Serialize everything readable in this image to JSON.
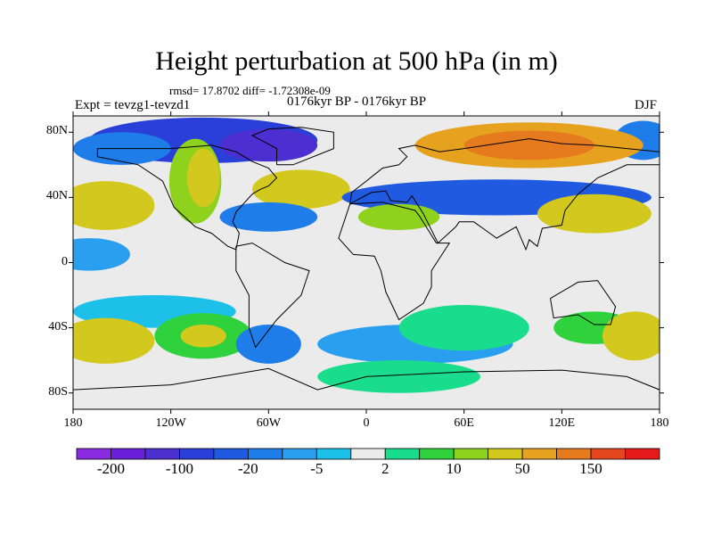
{
  "title": "Height perturbation at 500 hPa (in m)",
  "stats": "rmsd= 17.8702 diff= -1.72308e-09",
  "experiment": "Expt = tevzg1-tevzd1",
  "period": "0176kyr BP - 0176kyr BP",
  "season": "DJF",
  "map": {
    "projection": "cylindrical-equidistant",
    "lon_range": [
      -180,
      180
    ],
    "lat_range": [
      -90,
      90
    ],
    "x_ticks": [
      {
        "lon": -180,
        "label": "180"
      },
      {
        "lon": -120,
        "label": "120W"
      },
      {
        "lon": -60,
        "label": "60W"
      },
      {
        "lon": 0,
        "label": "0"
      },
      {
        "lon": 60,
        "label": "60E"
      },
      {
        "lon": 120,
        "label": "120E"
      },
      {
        "lon": 180,
        "label": "180"
      }
    ],
    "y_ticks": [
      {
        "lat": 80,
        "label": "80N"
      },
      {
        "lat": 40,
        "label": "40N"
      },
      {
        "lat": 0,
        "label": "0"
      },
      {
        "lat": -40,
        "label": "40S"
      },
      {
        "lat": -80,
        "label": "80S"
      }
    ],
    "background_color": "#ebebeb",
    "coastline_color": "#000000"
  },
  "colorbar": {
    "colors": [
      "#8a2be2",
      "#6a1fd8",
      "#4b2fd0",
      "#2a3fd8",
      "#1f5ae0",
      "#1e7de8",
      "#2a9ff0",
      "#1cc0e8",
      "#ebebeb",
      "#19dc8c",
      "#2fd23c",
      "#8fd21e",
      "#d2c81e",
      "#e6a21e",
      "#e67a1e",
      "#e6461e",
      "#e61a1a"
    ],
    "labels": [
      {
        "boundary": 1,
        "label": "-200"
      },
      {
        "boundary": 3,
        "label": "-100"
      },
      {
        "boundary": 5,
        "label": "-20"
      },
      {
        "boundary": 7,
        "label": "-5"
      },
      {
        "boundary": 9,
        "label": "2"
      },
      {
        "boundary": 11,
        "label": "10"
      },
      {
        "boundary": 13,
        "label": "50"
      },
      {
        "boundary": 15,
        "label": "150"
      }
    ]
  },
  "anomaly_fields": [
    {
      "lon": -100,
      "lat": 75,
      "rx": 70,
      "ry": 14,
      "color": "#2a3fd8"
    },
    {
      "lon": -60,
      "lat": 72,
      "rx": 30,
      "ry": 10,
      "color": "#4b2fd0"
    },
    {
      "lon": -150,
      "lat": 70,
      "rx": 30,
      "ry": 10,
      "color": "#1e7de8"
    },
    {
      "lon": 170,
      "lat": 75,
      "rx": 18,
      "ry": 12,
      "color": "#1e7de8"
    },
    {
      "lon": 100,
      "lat": 72,
      "rx": 70,
      "ry": 14,
      "color": "#e6a21e"
    },
    {
      "lon": 100,
      "lat": 72,
      "rx": 40,
      "ry": 9,
      "color": "#e67a1e"
    },
    {
      "lon": -40,
      "lat": 45,
      "rx": 30,
      "ry": 12,
      "color": "#d2c81e"
    },
    {
      "lon": -105,
      "lat": 50,
      "rx": 16,
      "ry": 26,
      "color": "#8fd21e"
    },
    {
      "lon": -100,
      "lat": 52,
      "rx": 10,
      "ry": 18,
      "color": "#d2c81e"
    },
    {
      "lon": 80,
      "lat": 40,
      "rx": 95,
      "ry": 11,
      "color": "#1f5ae0"
    },
    {
      "lon": -60,
      "lat": 28,
      "rx": 30,
      "ry": 9,
      "color": "#1e7de8"
    },
    {
      "lon": -160,
      "lat": 35,
      "rx": 30,
      "ry": 15,
      "color": "#d2c81e"
    },
    {
      "lon": 140,
      "lat": 30,
      "rx": 35,
      "ry": 12,
      "color": "#d2c81e"
    },
    {
      "lon": 20,
      "lat": 28,
      "rx": 25,
      "ry": 8,
      "color": "#8fd21e"
    },
    {
      "lon": -170,
      "lat": 5,
      "rx": 25,
      "ry": 10,
      "color": "#2a9ff0"
    },
    {
      "lon": -130,
      "lat": -30,
      "rx": 50,
      "ry": 10,
      "color": "#1cc0e8"
    },
    {
      "lon": -160,
      "lat": -48,
      "rx": 30,
      "ry": 14,
      "color": "#d2c81e"
    },
    {
      "lon": -100,
      "lat": -45,
      "rx": 30,
      "ry": 14,
      "color": "#2fd23c"
    },
    {
      "lon": -100,
      "lat": -45,
      "rx": 14,
      "ry": 7,
      "color": "#d2c81e"
    },
    {
      "lon": -60,
      "lat": -50,
      "rx": 20,
      "ry": 12,
      "color": "#1e7de8"
    },
    {
      "lon": 30,
      "lat": -50,
      "rx": 60,
      "ry": 12,
      "color": "#2a9ff0"
    },
    {
      "lon": 60,
      "lat": -40,
      "rx": 40,
      "ry": 14,
      "color": "#19dc8c"
    },
    {
      "lon": 140,
      "lat": -40,
      "rx": 25,
      "ry": 10,
      "color": "#2fd23c"
    },
    {
      "lon": 165,
      "lat": -45,
      "rx": 20,
      "ry": 15,
      "color": "#d2c81e"
    },
    {
      "lon": 20,
      "lat": -70,
      "rx": 50,
      "ry": 10,
      "color": "#19dc8c"
    }
  ],
  "coastlines": [
    [
      [
        -165,
        65
      ],
      [
        -140,
        60
      ],
      [
        -125,
        50
      ],
      [
        -118,
        34
      ],
      [
        -105,
        22
      ],
      [
        -95,
        18
      ],
      [
        -85,
        10
      ],
      [
        -80,
        8
      ],
      [
        -78,
        18
      ],
      [
        -82,
        25
      ],
      [
        -80,
        31
      ],
      [
        -70,
        42
      ],
      [
        -65,
        45
      ],
      [
        -60,
        47
      ],
      [
        -55,
        52
      ],
      [
        -60,
        58
      ],
      [
        -70,
        62
      ],
      [
        -80,
        68
      ],
      [
        -95,
        72
      ],
      [
        -120,
        70
      ],
      [
        -140,
        70
      ],
      [
        -165,
        70
      ],
      [
        -165,
        65
      ]
    ],
    [
      [
        -55,
        60
      ],
      [
        -45,
        60
      ],
      [
        -20,
        70
      ],
      [
        -20,
        80
      ],
      [
        -40,
        83
      ],
      [
        -60,
        82
      ],
      [
        -70,
        78
      ],
      [
        -55,
        70
      ],
      [
        -55,
        60
      ]
    ],
    [
      [
        -80,
        10
      ],
      [
        -70,
        12
      ],
      [
        -50,
        0
      ],
      [
        -35,
        -5
      ],
      [
        -40,
        -20
      ],
      [
        -55,
        -35
      ],
      [
        -68,
        -52
      ],
      [
        -72,
        -40
      ],
      [
        -72,
        -20
      ],
      [
        -80,
        -5
      ],
      [
        -80,
        10
      ]
    ],
    [
      [
        -10,
        36
      ],
      [
        10,
        37
      ],
      [
        30,
        32
      ],
      [
        33,
        28
      ],
      [
        43,
        12
      ],
      [
        51,
        12
      ],
      [
        40,
        -5
      ],
      [
        40,
        -15
      ],
      [
        35,
        -25
      ],
      [
        20,
        -35
      ],
      [
        12,
        -18
      ],
      [
        9,
        -5
      ],
      [
        5,
        4
      ],
      [
        -8,
        5
      ],
      [
        -17,
        15
      ],
      [
        -10,
        36
      ]
    ],
    [
      [
        -10,
        36
      ],
      [
        -9,
        43
      ],
      [
        0,
        50
      ],
      [
        5,
        54
      ],
      [
        10,
        58
      ],
      [
        20,
        60
      ],
      [
        25,
        65
      ],
      [
        20,
        70
      ],
      [
        30,
        72
      ],
      [
        45,
        68
      ],
      [
        60,
        70
      ],
      [
        80,
        73
      ],
      [
        100,
        76
      ],
      [
        120,
        73
      ],
      [
        140,
        72
      ],
      [
        160,
        70
      ],
      [
        180,
        68
      ],
      [
        180,
        60
      ],
      [
        160,
        60
      ],
      [
        142,
        52
      ],
      [
        130,
        42
      ],
      [
        122,
        32
      ],
      [
        120,
        23
      ],
      [
        108,
        21
      ],
      [
        105,
        10
      ],
      [
        100,
        14
      ],
      [
        98,
        8
      ],
      [
        92,
        22
      ],
      [
        80,
        15
      ],
      [
        73,
        20
      ],
      [
        66,
        25
      ],
      [
        57,
        25
      ],
      [
        55,
        22
      ],
      [
        44,
        12
      ],
      [
        35,
        30
      ],
      [
        28,
        41
      ],
      [
        25,
        37
      ],
      [
        15,
        38
      ],
      [
        12,
        44
      ],
      [
        3,
        43
      ],
      [
        -10,
        36
      ]
    ],
    [
      [
        113,
        -22
      ],
      [
        130,
        -12
      ],
      [
        142,
        -11
      ],
      [
        153,
        -27
      ],
      [
        150,
        -38
      ],
      [
        140,
        -38
      ],
      [
        130,
        -32
      ],
      [
        115,
        -34
      ],
      [
        113,
        -22
      ]
    ],
    [
      [
        -180,
        -78
      ],
      [
        -120,
        -75
      ],
      [
        -60,
        -65
      ],
      [
        -30,
        -78
      ],
      [
        0,
        -70
      ],
      [
        60,
        -67
      ],
      [
        120,
        -66
      ],
      [
        160,
        -70
      ],
      [
        180,
        -78
      ]
    ]
  ]
}
